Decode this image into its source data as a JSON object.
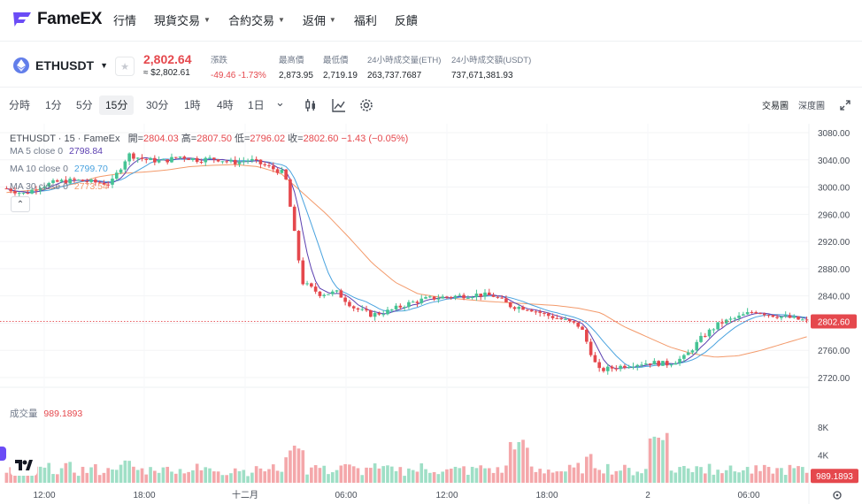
{
  "nav": {
    "brand": "FameEX",
    "menu": [
      {
        "label": "行情",
        "caret": false
      },
      {
        "label": "現貨交易",
        "caret": true
      },
      {
        "label": "合約交易",
        "caret": true
      },
      {
        "label": "返佣",
        "caret": true
      },
      {
        "label": "福利",
        "caret": false
      },
      {
        "label": "反饋",
        "caret": false
      }
    ]
  },
  "ticker": {
    "symbol": "ETHUSDT",
    "price": "2,802.64",
    "price_sub": "≈ $2,802.61",
    "stats": [
      {
        "label": "漲跌",
        "value": "-49.46 -1.73%",
        "color": "#e5484d"
      },
      {
        "label": "最高價",
        "value": "2,873.95"
      },
      {
        "label": "最低價",
        "value": "2,719.19"
      },
      {
        "label": "24小時成交量(ETH)",
        "value": "263,737.7687"
      },
      {
        "label": "24小時成交額(USDT)",
        "value": "737,671,381.93"
      }
    ]
  },
  "toolbar": {
    "timeframes": [
      "分時",
      "1分",
      "5分",
      "15分",
      "30分",
      "1時",
      "4時",
      "1日"
    ],
    "active": "15分",
    "view_tabs": [
      "交易圖",
      "深度圖"
    ],
    "active_view": "交易圖"
  },
  "legend": {
    "title": "ETHUSDT · 15 · FameEx",
    "ohlc": [
      {
        "k": "開",
        "v": "2804.03"
      },
      {
        "k": "高",
        "v": "2807.50"
      },
      {
        "k": "低",
        "v": "2796.02"
      },
      {
        "k": "收",
        "v": "2802.60"
      }
    ],
    "change": "−1.43 (−0.05%)",
    "ma": [
      {
        "label": "MA 5 close 0",
        "value": "2798.84",
        "color": "#5b3fb0"
      },
      {
        "label": "MA 10 close 0",
        "value": "2799.70",
        "color": "#4aa3df"
      },
      {
        "label": "MA 30 close 0",
        "value": "2773.54",
        "color": "#f39a6b"
      }
    ],
    "volume_label": "成交量",
    "volume_value": "989.1893"
  },
  "chart_data": {
    "type": "candlestick",
    "y_ticks": [
      "3080.00",
      "3040.00",
      "3000.00",
      "2960.00",
      "2920.00",
      "2880.00",
      "2840.00",
      "2800.00",
      "2760.00",
      "2720.00"
    ],
    "ylim": [
      2700,
      3090
    ],
    "vol_ticks": [
      "8K",
      "4K"
    ],
    "x_ticks": [
      "12:00",
      "18:00",
      "十二月",
      "06:00",
      "12:00",
      "18:00",
      "2",
      "06:00"
    ],
    "last_price": "2802.60",
    "last_volume": "989.1893",
    "up_color": "#45c394",
    "down_color": "#e5484d",
    "close_anchors": [
      2998,
      2990,
      3002,
      3008,
      3010,
      3007,
      3005,
      3048,
      3040,
      3038,
      3045,
      3040,
      3042,
      3036,
      3040,
      3030,
      3020,
      2860,
      2843,
      2845,
      2822,
      2812,
      2818,
      2828,
      2835,
      2838,
      2840,
      2842,
      2840,
      2825,
      2822,
      2812,
      2805,
      2795,
      2730,
      2735,
      2740,
      2742,
      2740,
      2750,
      2780,
      2800,
      2808,
      2818,
      2812,
      2808,
      2803
    ],
    "ma30_anchors": [
      2992,
      2995,
      2998,
      3005,
      3015,
      3020,
      3022,
      3025,
      3030,
      3032,
      3033,
      3030,
      3020,
      2990,
      2960,
      2925,
      2888,
      2860,
      2843,
      2838,
      2835,
      2832,
      2830,
      2828,
      2826,
      2822,
      2815,
      2795,
      2780,
      2765,
      2755,
      2750,
      2752,
      2760,
      2770,
      2780
    ]
  },
  "icons": [
    "fameex-logo",
    "ethereum-icon",
    "star-icon",
    "candle-icon",
    "line-chart-icon",
    "settings-icon",
    "fullscreen-icon",
    "tradingview-logo",
    "gear-icon"
  ]
}
